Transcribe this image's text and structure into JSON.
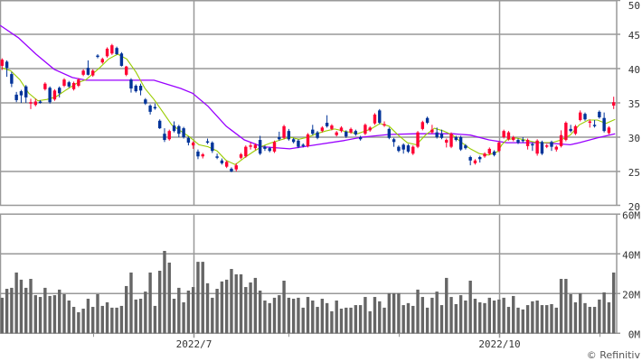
{
  "chart_data": [
    {
      "type": "candlestick",
      "ylim": [
        20,
        50
      ],
      "yticks": [
        "20",
        "25",
        "30",
        "35",
        "40",
        "45",
        "50"
      ],
      "grid": true,
      "colors": {
        "up": "#ff0033",
        "down": "#003399",
        "ma_short": "#99cc00",
        "ma_long": "#9900ff",
        "grid": "#999999"
      },
      "ohlc": [
        [
          40.4,
          41.5,
          39.8,
          41.3
        ],
        [
          41.0,
          41.2,
          38.8,
          40.1
        ],
        [
          39.2,
          39.5,
          37.3,
          37.8
        ],
        [
          36.2,
          36.6,
          35.1,
          35.4
        ],
        [
          36.7,
          36.9,
          35.0,
          36.1
        ],
        [
          37.4,
          37.6,
          35.0,
          35.8
        ],
        [
          34.9,
          35.6,
          34.1,
          35.1
        ],
        [
          34.7,
          35.6,
          34.5,
          35.2
        ],
        [
          35.2,
          35.4,
          34.9,
          35.0
        ],
        [
          37.0,
          38.0,
          36.8,
          37.8
        ],
        [
          37.2,
          37.4,
          34.9,
          35.1
        ],
        [
          35.5,
          37.0,
          35.3,
          36.8
        ],
        [
          37.2,
          37.4,
          35.8,
          36.4
        ],
        [
          37.5,
          38.6,
          37.3,
          38.4
        ],
        [
          38.0,
          38.2,
          37.2,
          37.4
        ],
        [
          37.0,
          38.1,
          36.8,
          37.9
        ],
        [
          37.5,
          38.6,
          37.3,
          38.4
        ],
        [
          39.1,
          39.9,
          38.9,
          39.7
        ],
        [
          40.1,
          41.2,
          39.0,
          39.1
        ],
        [
          39.0,
          39.9,
          38.8,
          39.7
        ],
        [
          41.9,
          42.1,
          41.5,
          41.7
        ],
        [
          40.9,
          41.6,
          40.7,
          41.4
        ],
        [
          41.8,
          43.1,
          41.6,
          42.9
        ],
        [
          42.2,
          43.6,
          42.0,
          43.4
        ],
        [
          43.0,
          43.2,
          42.0,
          42.1
        ],
        [
          42.2,
          42.4,
          40.3,
          40.4
        ],
        [
          39.1,
          40.4,
          38.9,
          40.3
        ],
        [
          38.4,
          38.6,
          36.5,
          37.1
        ],
        [
          37.5,
          37.7,
          36.5,
          36.7
        ],
        [
          37.5,
          37.8,
          36.1,
          36.8
        ],
        [
          35.5,
          35.7,
          34.7,
          34.9
        ],
        [
          34.6,
          34.8,
          33.3,
          33.7
        ],
        [
          34.4,
          34.9,
          34.0,
          34.2
        ],
        [
          32.4,
          32.6,
          31.2,
          31.3
        ],
        [
          30.5,
          31.3,
          29.3,
          29.6
        ],
        [
          29.7,
          31.1,
          29.5,
          30.9
        ],
        [
          31.7,
          32.3,
          30.7,
          30.9
        ],
        [
          31.6,
          31.8,
          30.0,
          30.5
        ],
        [
          31.3,
          31.5,
          29.8,
          30.0
        ],
        [
          29.9,
          30.1,
          28.8,
          29.2
        ],
        [
          28.8,
          29.4,
          28.3,
          29.2
        ],
        [
          27.9,
          28.2,
          26.8,
          27.2
        ],
        [
          27.2,
          27.7,
          26.9,
          27.5
        ],
        [
          29.4,
          29.8,
          29.0,
          29.2
        ],
        [
          29.2,
          29.4,
          27.7,
          28.0
        ],
        [
          27.2,
          27.6,
          26.8,
          27.0
        ],
        [
          26.6,
          26.9,
          26.0,
          26.2
        ],
        [
          25.7,
          26.6,
          25.5,
          26.4
        ],
        [
          25.4,
          25.6,
          24.9,
          25.0
        ],
        [
          25.3,
          26.2,
          25.0,
          25.9
        ],
        [
          27.0,
          27.7,
          26.8,
          27.5
        ],
        [
          27.2,
          28.8,
          27.0,
          28.6
        ],
        [
          28.6,
          29.2,
          28.2,
          28.8
        ],
        [
          28.4,
          29.1,
          28.1,
          28.9
        ],
        [
          29.6,
          30.2,
          27.4,
          27.6
        ],
        [
          28.6,
          28.8,
          28.0,
          28.3
        ],
        [
          28.4,
          28.6,
          27.8,
          28.0
        ],
        [
          27.9,
          29.5,
          27.7,
          29.3
        ],
        [
          30.0,
          30.8,
          29.5,
          29.7
        ],
        [
          29.9,
          31.8,
          29.7,
          31.6
        ],
        [
          30.9,
          31.2,
          29.5,
          29.7
        ],
        [
          29.7,
          29.9,
          29.1,
          29.3
        ],
        [
          29.5,
          29.7,
          28.4,
          28.6
        ],
        [
          28.9,
          29.1,
          28.5,
          28.7
        ],
        [
          28.7,
          30.6,
          28.5,
          30.4
        ],
        [
          31.1,
          31.8,
          30.3,
          30.5
        ],
        [
          30.7,
          30.9,
          29.7,
          29.9
        ],
        [
          30.9,
          31.6,
          30.7,
          31.4
        ],
        [
          32.1,
          33.2,
          31.4,
          31.6
        ],
        [
          31.2,
          31.9,
          31.0,
          31.7
        ],
        [
          30.3,
          30.9,
          30.1,
          30.7
        ],
        [
          30.9,
          31.6,
          30.7,
          31.4
        ],
        [
          30.8,
          31.0,
          29.9,
          30.1
        ],
        [
          30.7,
          31.4,
          30.5,
          31.2
        ],
        [
          30.9,
          31.1,
          30.2,
          30.4
        ],
        [
          30.0,
          30.2,
          29.5,
          29.7
        ],
        [
          30.5,
          32.0,
          30.3,
          31.8
        ],
        [
          31.0,
          31.6,
          30.8,
          31.4
        ],
        [
          32.0,
          33.5,
          31.8,
          33.3
        ],
        [
          33.9,
          34.1,
          31.9,
          32.1
        ],
        [
          31.7,
          32.3,
          31.5,
          31.9
        ],
        [
          31.2,
          31.4,
          29.7,
          29.9
        ],
        [
          29.7,
          29.9,
          28.6,
          29.3
        ],
        [
          28.6,
          28.8,
          27.8,
          28.0
        ],
        [
          28.9,
          29.1,
          27.6,
          28.2
        ],
        [
          28.8,
          29.0,
          27.7,
          27.9
        ],
        [
          27.6,
          28.8,
          27.4,
          28.6
        ],
        [
          28.6,
          30.9,
          28.4,
          30.7
        ],
        [
          31.2,
          32.4,
          31.0,
          32.2
        ],
        [
          32.8,
          33.0,
          31.9,
          32.1
        ],
        [
          30.7,
          31.8,
          30.5,
          31.1
        ],
        [
          30.7,
          31.4,
          29.8,
          30.0
        ],
        [
          30.5,
          31.1,
          29.7,
          29.9
        ],
        [
          29.2,
          29.8,
          28.5,
          29.6
        ],
        [
          28.6,
          30.7,
          28.4,
          30.5
        ],
        [
          30.0,
          30.2,
          29.4,
          29.6
        ],
        [
          30.0,
          30.2,
          28.0,
          28.2
        ],
        [
          28.8,
          29.0,
          28.2,
          28.4
        ],
        [
          27.1,
          27.3,
          25.9,
          26.6
        ],
        [
          26.2,
          26.8,
          26.0,
          26.6
        ],
        [
          27.1,
          27.3,
          26.3,
          26.8
        ],
        [
          27.2,
          27.8,
          27.0,
          27.6
        ],
        [
          27.6,
          28.5,
          27.4,
          28.3
        ],
        [
          27.9,
          28.1,
          27.2,
          27.4
        ],
        [
          28.0,
          29.4,
          27.8,
          29.2
        ],
        [
          30.0,
          31.1,
          29.8,
          30.9
        ],
        [
          29.7,
          30.9,
          29.5,
          30.7
        ],
        [
          29.6,
          30.2,
          29.4,
          30.0
        ],
        [
          29.6,
          29.8,
          29.0,
          29.2
        ],
        [
          29.6,
          30.0,
          29.2,
          29.5
        ],
        [
          28.7,
          29.8,
          28.2,
          29.6
        ],
        [
          29.0,
          29.2,
          28.0,
          28.8
        ],
        [
          27.6,
          29.7,
          27.3,
          29.5
        ],
        [
          29.3,
          29.5,
          27.4,
          27.6
        ],
        [
          28.6,
          29.0,
          28.4,
          28.8
        ],
        [
          29.3,
          29.5,
          28.0,
          28.6
        ],
        [
          28.2,
          28.8,
          27.9,
          28.6
        ],
        [
          28.7,
          31.0,
          28.5,
          30.3
        ],
        [
          29.6,
          32.3,
          29.4,
          32.1
        ],
        [
          31.2,
          31.8,
          30.7,
          30.9
        ],
        [
          30.5,
          31.8,
          30.3,
          31.6
        ],
        [
          32.5,
          33.9,
          32.3,
          33.6
        ],
        [
          33.4,
          33.6,
          32.4,
          32.6
        ],
        [
          32.1,
          32.6,
          31.4,
          32.3
        ],
        [
          31.8,
          32.5,
          31.4,
          31.6
        ],
        [
          33.7,
          33.9,
          32.7,
          32.9
        ],
        [
          32.8,
          33.6,
          30.7,
          30.9
        ],
        [
          30.6,
          31.6,
          30.4,
          31.4
        ],
        [
          34.6,
          35.9,
          34.1,
          35.1
        ]
      ],
      "ma_short": [
        [
          0,
          40.1
        ],
        [
          1.8,
          39.7
        ],
        [
          3.7,
          38.4
        ],
        [
          5.6,
          36.4
        ],
        [
          7.5,
          35.3
        ],
        [
          9.4,
          35.5
        ],
        [
          11.3,
          35.9
        ],
        [
          13.2,
          36.8
        ],
        [
          15.7,
          37.9
        ],
        [
          17.6,
          38.4
        ],
        [
          20.4,
          40.1
        ],
        [
          22.3,
          41.4
        ],
        [
          24.2,
          42.1
        ],
        [
          26.1,
          41.4
        ],
        [
          28,
          39.5
        ],
        [
          29.9,
          37.1
        ],
        [
          31.8,
          35.5
        ],
        [
          33.7,
          33.6
        ],
        [
          35.5,
          31.8
        ],
        [
          37.4,
          30.9
        ],
        [
          39.3,
          30
        ],
        [
          41.2,
          28.9
        ],
        [
          43.1,
          28.6
        ],
        [
          45,
          28
        ],
        [
          46.9,
          26.6
        ],
        [
          48.8,
          26
        ],
        [
          50.7,
          27
        ],
        [
          52.6,
          27.9
        ],
        [
          54.5,
          28.7
        ],
        [
          56.4,
          29.2
        ],
        [
          58.3,
          29.6
        ],
        [
          60.2,
          30
        ],
        [
          62.1,
          29.7
        ],
        [
          64,
          30
        ],
        [
          65.8,
          30.5
        ],
        [
          67.7,
          30.9
        ],
        [
          69.6,
          31.2
        ],
        [
          71.5,
          30.9
        ],
        [
          74.4,
          30.5
        ],
        [
          77.2,
          31.2
        ],
        [
          79.1,
          32
        ],
        [
          81,
          31.6
        ],
        [
          82.9,
          30.3
        ],
        [
          84.8,
          29.2
        ],
        [
          86.7,
          28.9
        ],
        [
          88.6,
          30.3
        ],
        [
          90.5,
          31.3
        ],
        [
          92.4,
          30.9
        ],
        [
          94.3,
          30.3
        ],
        [
          96.2,
          29.2
        ],
        [
          98,
          28.3
        ],
        [
          99.9,
          27.6
        ],
        [
          101.8,
          27.4
        ],
        [
          103.7,
          27.9
        ],
        [
          104.6,
          28.9
        ],
        [
          105.6,
          29.6
        ],
        [
          107.5,
          29.9
        ],
        [
          109.4,
          29.6
        ],
        [
          111.3,
          29.3
        ],
        [
          113.2,
          29.2
        ],
        [
          115.1,
          29.2
        ],
        [
          117,
          29.6
        ],
        [
          118.9,
          30.3
        ],
        [
          120.8,
          31.8
        ],
        [
          122.7,
          32.5
        ],
        [
          124.6,
          32.5
        ],
        [
          126.4,
          32
        ],
        [
          128.3,
          32.6
        ]
      ],
      "ma_long": [
        [
          -0.4,
          46.3
        ],
        [
          3.4,
          44.5
        ],
        [
          7.1,
          42.1
        ],
        [
          10.9,
          39.9
        ],
        [
          14.7,
          38.7
        ],
        [
          17.6,
          38.3
        ],
        [
          31.8,
          38.3
        ],
        [
          33.7,
          37.9
        ],
        [
          37.4,
          37.1
        ],
        [
          39.9,
          36.4
        ],
        [
          43.1,
          34.5
        ],
        [
          46.9,
          31.6
        ],
        [
          50.7,
          29.6
        ],
        [
          54.5,
          28.6
        ],
        [
          60.2,
          28.3
        ],
        [
          65.8,
          28.9
        ],
        [
          71.5,
          29.5
        ],
        [
          75.3,
          30
        ],
        [
          81,
          30.4
        ],
        [
          86.7,
          30.5
        ],
        [
          94.3,
          30.5
        ],
        [
          98,
          30.3
        ],
        [
          101.9,
          29.6
        ],
        [
          105.6,
          29.2
        ],
        [
          113.2,
          29.2
        ],
        [
          118.9,
          28.9
        ],
        [
          120.8,
          29.2
        ],
        [
          124.6,
          29.9
        ],
        [
          128.3,
          30.5
        ]
      ]
    },
    {
      "type": "bar",
      "ylim": [
        0,
        60
      ],
      "yticks": [
        "0M",
        "20M",
        "40M",
        "60M"
      ],
      "color": "#666666",
      "values": [
        17.9,
        22.4,
        22.9,
        30.6,
        27,
        22.9,
        27.4,
        19.2,
        18.3,
        22.9,
        18.8,
        19.2,
        22,
        19.7,
        16.5,
        13.3,
        10.6,
        12.4,
        17.4,
        13.3,
        19.7,
        13.8,
        15.6,
        12.9,
        12.9,
        13.8,
        23.8,
        30.6,
        17,
        17.4,
        21,
        30.6,
        13.8,
        31.5,
        41.5,
        35.6,
        17.4,
        22.9,
        15.6,
        21.5,
        23.3,
        36,
        36,
        25.2,
        17.9,
        22.4,
        26.1,
        27,
        32.4,
        29.7,
        29.7,
        23.3,
        25.6,
        27.9,
        21.5,
        16.5,
        15.2,
        17.9,
        19.2,
        26.5,
        17.9,
        17.4,
        17.9,
        12.9,
        18.3,
        16.5,
        13.3,
        17.4,
        15.2,
        11.1,
        16.5,
        12.4,
        12.9,
        12.9,
        14.2,
        14.2,
        18.3,
        11.1,
        18.3,
        16.1,
        12.9,
        20.2,
        20.2,
        20.2,
        14.2,
        15.2,
        13.8,
        22,
        18.3,
        12.9,
        17.9,
        21,
        14.2,
        27.9,
        18.3,
        14.7,
        19.2,
        16.5,
        26.5,
        17.4,
        15.6,
        15.2,
        17.9,
        16.5,
        17,
        17.9,
        13.3,
        18.8,
        12.9,
        12,
        14.2,
        16.1,
        16.5,
        14.2,
        14.2,
        14.7,
        12.9,
        27.4,
        27.4,
        19.7,
        15.6,
        20.2,
        15.2,
        13.3,
        13.3,
        17,
        20.6,
        15.6,
        30.6
      ]
    }
  ],
  "x_axis": {
    "labels": [
      {
        "text": "2022/7",
        "index": 40
      },
      {
        "text": "2022/10",
        "index": 104
      }
    ],
    "minor_ticks": [
      19,
      60,
      83,
      125
    ]
  },
  "copyright": "© Refinitiv"
}
